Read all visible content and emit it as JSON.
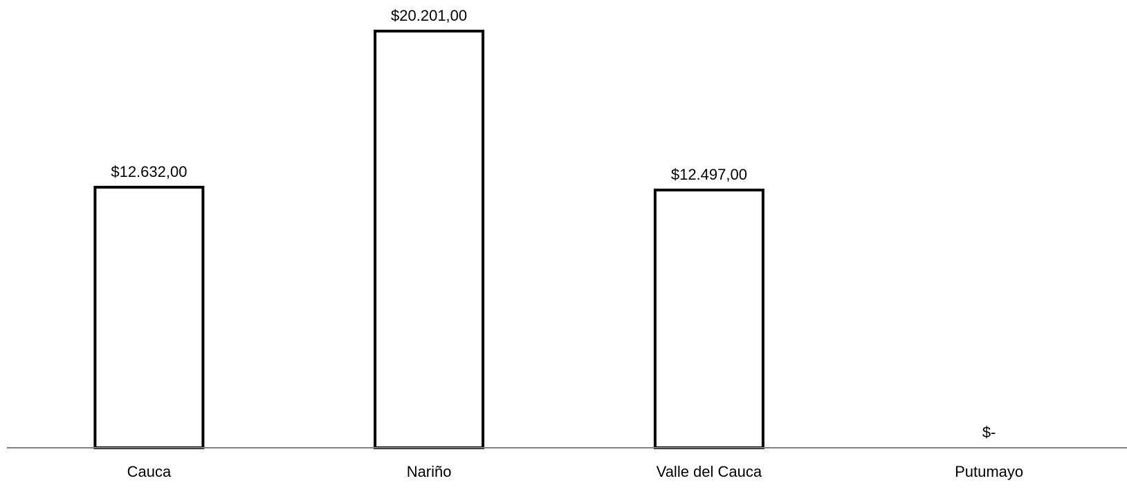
{
  "chart_data": {
    "type": "bar",
    "categories": [
      "Cauca",
      "Nariño",
      "Valle del Cauca",
      "Putumayo"
    ],
    "values": [
      12632,
      20201,
      12497,
      0
    ],
    "data_labels": [
      "$12.632,00",
      "$20.201,00",
      "$12.497,00",
      "$-"
    ],
    "title": "",
    "xlabel": "",
    "ylabel": "",
    "ylim": [
      0,
      20201
    ],
    "grid": false,
    "legend": "none",
    "bar_fill": "#ffffff",
    "bar_stroke": "#000000",
    "axis_color": "#808080"
  }
}
